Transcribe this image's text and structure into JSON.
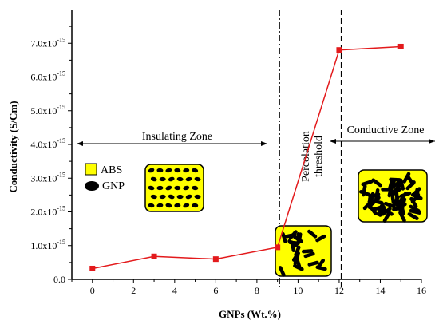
{
  "chart_data": {
    "type": "line",
    "xlabel": "GNPs (Wt.%)",
    "ylabel": "Conductivity (S/Cm)",
    "xlim": [
      -1,
      16
    ],
    "ylim": [
      0,
      8e-15
    ],
    "x_ticks": [
      0,
      2,
      4,
      6,
      8,
      10,
      12,
      14,
      16
    ],
    "y_ticks": [
      {
        "value": 0,
        "mant": "0.0",
        "exp": ""
      },
      {
        "value": 1e-15,
        "mant": "1.0x10",
        "exp": "-15"
      },
      {
        "value": 2e-15,
        "mant": "2.0x10",
        "exp": "-15"
      },
      {
        "value": 3e-15,
        "mant": "3.0x10",
        "exp": "-15"
      },
      {
        "value": 4e-15,
        "mant": "4.0x10",
        "exp": "-15"
      },
      {
        "value": 5e-15,
        "mant": "5.0x10",
        "exp": "-15"
      },
      {
        "value": 6e-15,
        "mant": "6.0x10",
        "exp": "-15"
      },
      {
        "value": 7e-15,
        "mant": "7.0x10",
        "exp": "-15"
      }
    ],
    "series": [
      {
        "color": "#e31a1c",
        "x": [
          0,
          3,
          6,
          9,
          12,
          15
        ],
        "y": [
          3.2e-16,
          6.8e-16,
          6e-16,
          9.5e-16,
          6.8e-15,
          6.9e-15
        ]
      }
    ],
    "vlines": [
      9.1,
      12.1
    ],
    "annotations": {
      "insulating_zone": "Insulating Zone",
      "conductive_zone": "Conductive Zone",
      "percolation_line1": "Percolation",
      "percolation_line2": "threshold"
    },
    "legend": [
      {
        "label": "ABS",
        "color": "#ffff00"
      },
      {
        "label": "GNP",
        "color": "#000000"
      }
    ]
  }
}
